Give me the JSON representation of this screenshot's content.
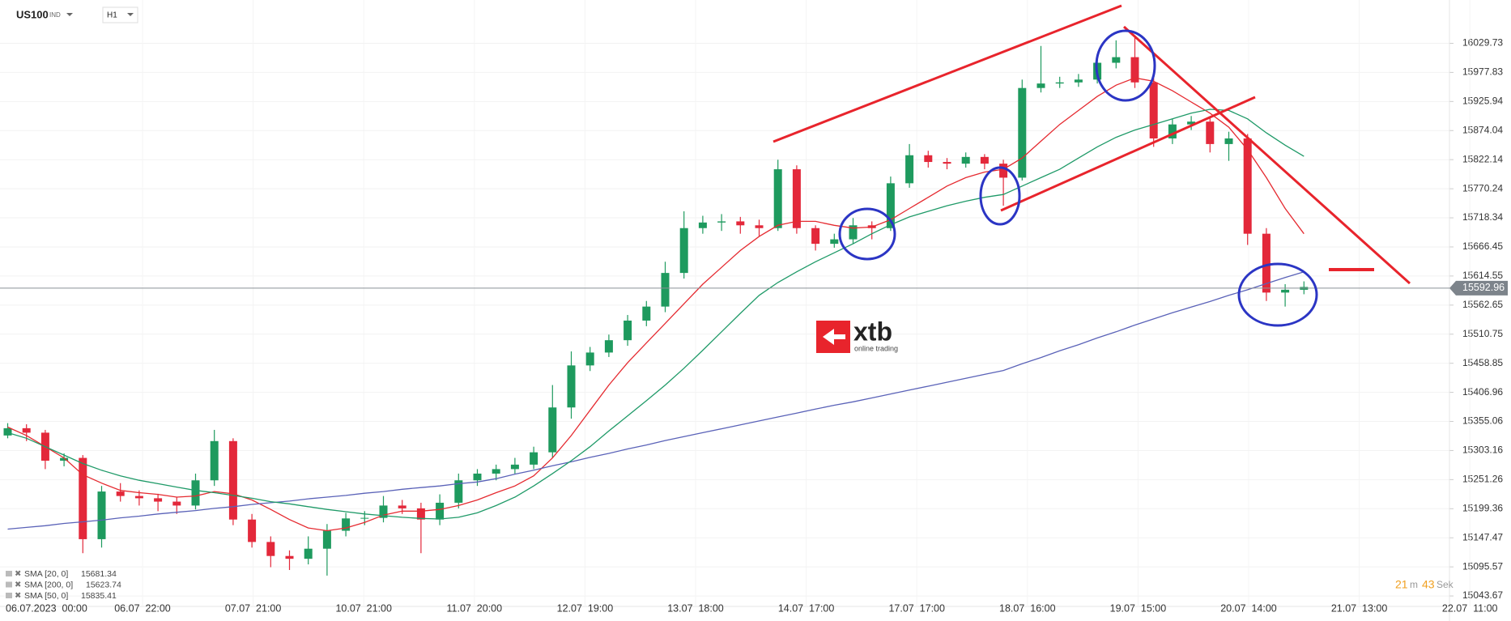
{
  "header": {
    "symbol": "US100",
    "market": "IND",
    "interval": "H1"
  },
  "logo": {
    "name": "xtb",
    "tagline": "online trading"
  },
  "chart_data": {
    "type": "candlestick",
    "x_labels": [
      "06.07.2023  00:00",
      "06.07  22:00",
      "07.07  21:00",
      "10.07  21:00",
      "11.07  20:00",
      "12.07  19:00",
      "13.07  18:00",
      "14.07  17:00",
      "17.07  17:00",
      "18.07  16:00",
      "19.07  15:00",
      "20.07  14:00",
      "21.07  13:00",
      "22.07  11:00"
    ],
    "ylim": [
      15025,
      16107
    ],
    "yticks": [
      16029.73,
      15977.83,
      15925.94,
      15874.04,
      15822.14,
      15770.24,
      15718.34,
      15666.45,
      15614.55,
      15562.65,
      15510.75,
      15458.85,
      15406.96,
      15355.06,
      15303.16,
      15251.26,
      15199.36,
      15147.47,
      15095.57,
      15043.67
    ],
    "grid": true,
    "up_color": "#1e9a5e",
    "down_color": "#e3283a",
    "last_price": 15592.96,
    "ohlc": [
      [
        15330,
        15352,
        15325,
        15343
      ],
      [
        15343,
        15350,
        15320,
        15335
      ],
      [
        15335,
        15340,
        15270,
        15285
      ],
      [
        15285,
        15298,
        15275,
        15290
      ],
      [
        15290,
        15295,
        15120,
        15145
      ],
      [
        15145,
        15240,
        15130,
        15230
      ],
      [
        15230,
        15245,
        15212,
        15222
      ],
      [
        15222,
        15232,
        15205,
        15218
      ],
      [
        15218,
        15226,
        15195,
        15212
      ],
      [
        15212,
        15220,
        15190,
        15205
      ],
      [
        15205,
        15262,
        15198,
        15250
      ],
      [
        15250,
        15340,
        15240,
        15320
      ],
      [
        15320,
        15325,
        15170,
        15180
      ],
      [
        15180,
        15190,
        15130,
        15140
      ],
      [
        15140,
        15150,
        15095,
        15115
      ],
      [
        15115,
        15125,
        15090,
        15110
      ],
      [
        15110,
        15150,
        15100,
        15128
      ],
      [
        15128,
        15172,
        15080,
        15160
      ],
      [
        15160,
        15192,
        15150,
        15182
      ],
      [
        15182,
        15195,
        15170,
        15183
      ],
      [
        15183,
        15222,
        15175,
        15205
      ],
      [
        15205,
        15215,
        15190,
        15200
      ],
      [
        15200,
        15210,
        15120,
        15180
      ],
      [
        15180,
        15225,
        15170,
        15210
      ],
      [
        15210,
        15262,
        15200,
        15250
      ],
      [
        15250,
        15270,
        15240,
        15262
      ],
      [
        15262,
        15278,
        15250,
        15270
      ],
      [
        15270,
        15290,
        15262,
        15278
      ],
      [
        15278,
        15310,
        15270,
        15300
      ],
      [
        15300,
        15420,
        15290,
        15380
      ],
      [
        15380,
        15480,
        15360,
        15455
      ],
      [
        15455,
        15488,
        15445,
        15478
      ],
      [
        15478,
        15510,
        15470,
        15500
      ],
      [
        15500,
        15545,
        15490,
        15535
      ],
      [
        15535,
        15570,
        15525,
        15560
      ],
      [
        15560,
        15640,
        15550,
        15620
      ],
      [
        15620,
        15730,
        15610,
        15700
      ],
      [
        15700,
        15722,
        15690,
        15710
      ],
      [
        15710,
        15725,
        15695,
        15712
      ],
      [
        15712,
        15720,
        15690,
        15705
      ],
      [
        15705,
        15715,
        15685,
        15700
      ],
      [
        15700,
        15822,
        15695,
        15805
      ],
      [
        15805,
        15812,
        15690,
        15700
      ],
      [
        15700,
        15705,
        15660,
        15672
      ],
      [
        15672,
        15690,
        15665,
        15680
      ],
      [
        15680,
        15718,
        15672,
        15705
      ],
      [
        15705,
        15712,
        15680,
        15700
      ],
      [
        15700,
        15792,
        15695,
        15780
      ],
      [
        15780,
        15850,
        15772,
        15830
      ],
      [
        15830,
        15838,
        15808,
        15818
      ],
      [
        15818,
        15825,
        15805,
        15815
      ],
      [
        15815,
        15835,
        15808,
        15827
      ],
      [
        15827,
        15832,
        15805,
        15815
      ],
      [
        15815,
        15822,
        15740,
        15790
      ],
      [
        15790,
        15965,
        15785,
        15950
      ],
      [
        15950,
        16025,
        15942,
        15958
      ],
      [
        15958,
        15970,
        15950,
        15960
      ],
      [
        15960,
        15975,
        15952,
        15965
      ],
      [
        15965,
        16005,
        15958,
        15995
      ],
      [
        15995,
        16035,
        15985,
        16005
      ],
      [
        16005,
        16040,
        15950,
        15960
      ],
      [
        15960,
        15968,
        15845,
        15860
      ],
      [
        15860,
        15895,
        15850,
        15885
      ],
      [
        15885,
        15900,
        15875,
        15890
      ],
      [
        15890,
        15898,
        15835,
        15850
      ],
      [
        15850,
        15872,
        15820,
        15860
      ],
      [
        15860,
        15868,
        15670,
        15690
      ],
      [
        15690,
        15700,
        15570,
        15585
      ],
      [
        15585,
        15600,
        15560,
        15590
      ],
      [
        15590,
        15605,
        15582,
        15595
      ]
    ],
    "series": [
      {
        "name": "SMA [20, 0]",
        "color": "#e52a30",
        "legend_value": 15681.34,
        "values": [
          15345,
          15330,
          15310,
          15290,
          15260,
          15245,
          15232,
          15228,
          15225,
          15220,
          15222,
          15230,
          15226,
          15215,
          15198,
          15180,
          15165,
          15160,
          15165,
          15175,
          15188,
          15195,
          15195,
          15198,
          15205,
          15215,
          15228,
          15240,
          15258,
          15290,
          15330,
          15375,
          15420,
          15460,
          15495,
          15530,
          15565,
          15600,
          15630,
          15660,
          15685,
          15705,
          15712,
          15712,
          15705,
          15700,
          15702,
          15715,
          15735,
          15755,
          15775,
          15790,
          15800,
          15805,
          15825,
          15855,
          15885,
          15910,
          15935,
          15955,
          15968,
          15962,
          15945,
          15925,
          15905,
          15880,
          15840,
          15790,
          15735,
          15690
        ]
      },
      {
        "name": "SMA [200, 0]",
        "color": "#5a62b8",
        "legend_value": 15623.74,
        "values": [
          15163,
          15166,
          15169,
          15173,
          15176,
          15179,
          15183,
          15186,
          15190,
          15193,
          15196,
          15200,
          15203,
          15207,
          15210,
          15213,
          15217,
          15220,
          15223,
          15227,
          15230,
          15234,
          15237,
          15240,
          15244,
          15247,
          15253,
          15261,
          15268,
          15276,
          15283,
          15291,
          15298,
          15306,
          15313,
          15321,
          15328,
          15335,
          15342,
          15349,
          15356,
          15363,
          15370,
          15377,
          15384,
          15390,
          15397,
          15404,
          15411,
          15418,
          15425,
          15432,
          15439,
          15446,
          15458,
          15469,
          15481,
          15492,
          15504,
          15515,
          15527,
          15538,
          15549,
          15559,
          15569,
          15580,
          15590,
          15601,
          15612,
          15622
        ]
      },
      {
        "name": "SMA [50, 0]",
        "color": "#1f9a68",
        "legend_value": 15835.41,
        "values": [
          15335,
          15325,
          15310,
          15295,
          15280,
          15268,
          15258,
          15250,
          15244,
          15238,
          15232,
          15228,
          15223,
          15218,
          15212,
          15208,
          15203,
          15198,
          15194,
          15190,
          15187,
          15184,
          15182,
          15181,
          15184,
          15192,
          15205,
          15220,
          15240,
          15262,
          15285,
          15310,
          15338,
          15365,
          15392,
          15420,
          15450,
          15482,
          15515,
          15548,
          15580,
          15603,
          15622,
          15640,
          15656,
          15672,
          15690,
          15706,
          15720,
          15730,
          15740,
          15748,
          15755,
          15760,
          15775,
          15790,
          15805,
          15825,
          15845,
          15862,
          15875,
          15885,
          15895,
          15905,
          15912,
          15910,
          15895,
          15870,
          15848,
          15828
        ]
      }
    ],
    "countdown": {
      "minutes": 21,
      "minutes_unit": "m",
      "seconds": 43,
      "seconds_unit": "Sek"
    }
  }
}
